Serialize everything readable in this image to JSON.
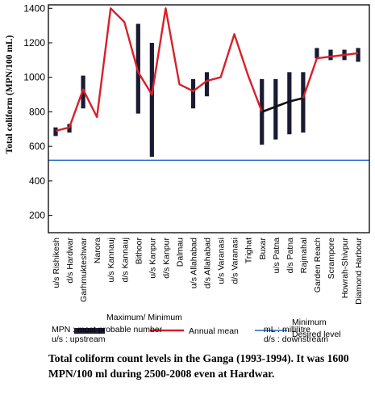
{
  "chart_data": {
    "type": "line",
    "ylabel": "Total coliform (MPN/100 mL)",
    "ylim": [
      100,
      1420
    ],
    "yticks": [
      200,
      400,
      600,
      800,
      1000,
      1200,
      1400
    ],
    "categories": [
      "u/s Rishikesh",
      "d/s Hardwar",
      "Garhmukteshwar",
      "Narora",
      "u/s Kannauj",
      "d/s Kannauj",
      "Bithoor",
      "u/s Kanpur",
      "d/s Kanpur",
      "Dalmau",
      "u/s Allahabad",
      "d/s Allahabad",
      "u/s Varanasi",
      "d/s Varanasi",
      "Trighat",
      "Buxar",
      "u/s Patna",
      "d/s Patna",
      "Rajmahal",
      "Garden Reach",
      "Scrampore",
      "Howrah-Shivpur",
      "Diamond Harbour"
    ],
    "series": [
      {
        "name": "Annual mean",
        "color": "#d8202a",
        "values": [
          690,
          710,
          930,
          770,
          1400,
          1320,
          1030,
          900,
          1400,
          960,
          920,
          980,
          1000,
          1250,
          1010,
          800,
          830,
          860,
          880,
          1110,
          1120,
          1130,
          1140
        ]
      }
    ],
    "range_series": {
      "name": "Maximum/ Minimum",
      "color": "#1a1a33",
      "bars": [
        {
          "category": "u/s Rishikesh",
          "min": 660,
          "max": 710
        },
        {
          "category": "d/s Hardwar",
          "min": 680,
          "max": 730
        },
        {
          "category": "Garhmukteshwar",
          "min": 820,
          "max": 1010
        },
        {
          "category": "Bithoor",
          "min": 790,
          "max": 1310
        },
        {
          "category": "u/s Kanpur",
          "min": 540,
          "max": 1200
        },
        {
          "category": "u/s Allahabad",
          "min": 820,
          "max": 990
        },
        {
          "category": "d/s Allahabad",
          "min": 890,
          "max": 1030
        },
        {
          "category": "Buxar",
          "min": 610,
          "max": 990
        },
        {
          "category": "u/s Patna",
          "min": 640,
          "max": 990
        },
        {
          "category": "d/s Patna",
          "min": 670,
          "max": 1030
        },
        {
          "category": "Rajmahal",
          "min": 680,
          "max": 1030
        },
        {
          "category": "Garden Reach",
          "min": 1110,
          "max": 1170
        },
        {
          "category": "Scrampore",
          "min": 1100,
          "max": 1160
        },
        {
          "category": "Howrah-Shivpur",
          "min": 1100,
          "max": 1160
        },
        {
          "category": "Diamond Harbour",
          "min": 1090,
          "max": 1170
        }
      ]
    },
    "reference_line": {
      "name": "Minimum Desired level",
      "value": 520,
      "color": "#2266cc"
    },
    "legend": {
      "placement": "bottom",
      "maxmin_label": "Maximum/ Minimum",
      "mean_label": "Annual mean",
      "mindes_label_1": "Minimum",
      "mindes_label_2": "Desired level",
      "note_mpn": "MPN : most probable number",
      "note_us": "u/s : upstream",
      "note_ml": "mL : millilitre",
      "note_ds": "d/s : downstream"
    }
  },
  "caption": "Total coliform count levels in the Ganga (1993-1994). It was 1600 MPN/100 ml during 2500-2008 even at Hardwar."
}
